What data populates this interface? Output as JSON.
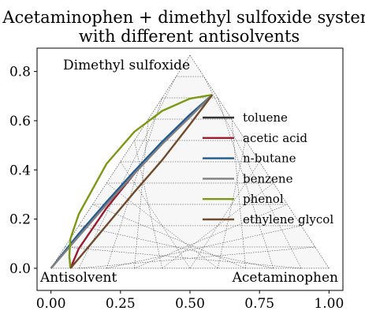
{
  "chart_data": {
    "type": "line",
    "title": "Acetaminophen + dimethyl sulfoxide system\nwith different antisolvents",
    "xlabel": "",
    "ylabel": "",
    "xlim": [
      -0.05,
      1.05
    ],
    "ylim": [
      -0.09,
      0.895
    ],
    "x_ticks": [
      0.0,
      0.25,
      0.5,
      0.75,
      1.0
    ],
    "x_tick_labels": [
      "0.00",
      "0.25",
      "0.50",
      "0.75",
      "1.00"
    ],
    "y_ticks": [
      0.0,
      0.2,
      0.4,
      0.6,
      0.8
    ],
    "y_tick_labels": [
      "0.0",
      "0.2",
      "0.4",
      "0.6",
      "0.8"
    ],
    "vertex_labels": {
      "top": "Dimethyl sulfoxide",
      "bottom_left": "Antisolvent",
      "bottom_right": "Acetaminophen"
    },
    "ternary_grid": true,
    "legend_position": "right",
    "series": [
      {
        "name": "toluene",
        "color": "#333333",
        "x": [
          0.0,
          0.1,
          0.2,
          0.3,
          0.4,
          0.5,
          0.58
        ],
        "y": [
          0.0,
          0.135,
          0.265,
          0.39,
          0.51,
          0.62,
          0.705
        ]
      },
      {
        "name": "acetic acid",
        "color": "#9b1b30",
        "x": [
          0.07,
          0.1,
          0.2,
          0.3,
          0.4,
          0.5,
          0.58
        ],
        "y": [
          0.0,
          0.08,
          0.245,
          0.385,
          0.51,
          0.62,
          0.705
        ]
      },
      {
        "name": "n-butane",
        "color": "#1f5a94",
        "x": [
          0.0,
          0.1,
          0.2,
          0.3,
          0.4,
          0.5,
          0.58
        ],
        "y": [
          0.0,
          0.14,
          0.27,
          0.395,
          0.515,
          0.625,
          0.705
        ]
      },
      {
        "name": "benzene",
        "color": "#808080",
        "x": [
          0.0,
          0.1,
          0.2,
          0.3,
          0.4,
          0.5,
          0.58
        ],
        "y": [
          0.0,
          0.13,
          0.26,
          0.385,
          0.505,
          0.615,
          0.705
        ]
      },
      {
        "name": "phenol",
        "color": "#7a9a14",
        "x": [
          0.07,
          0.066,
          0.07,
          0.1,
          0.2,
          0.3,
          0.4,
          0.5,
          0.58
        ],
        "y": [
          0.0,
          0.05,
          0.12,
          0.22,
          0.425,
          0.555,
          0.64,
          0.69,
          0.705
        ]
      },
      {
        "name": "ethylene glycol",
        "color": "#704a2a",
        "x": [
          0.07,
          0.1,
          0.2,
          0.3,
          0.4,
          0.5,
          0.58
        ],
        "y": [
          0.0,
          0.04,
          0.175,
          0.31,
          0.44,
          0.585,
          0.705
        ]
      }
    ]
  }
}
